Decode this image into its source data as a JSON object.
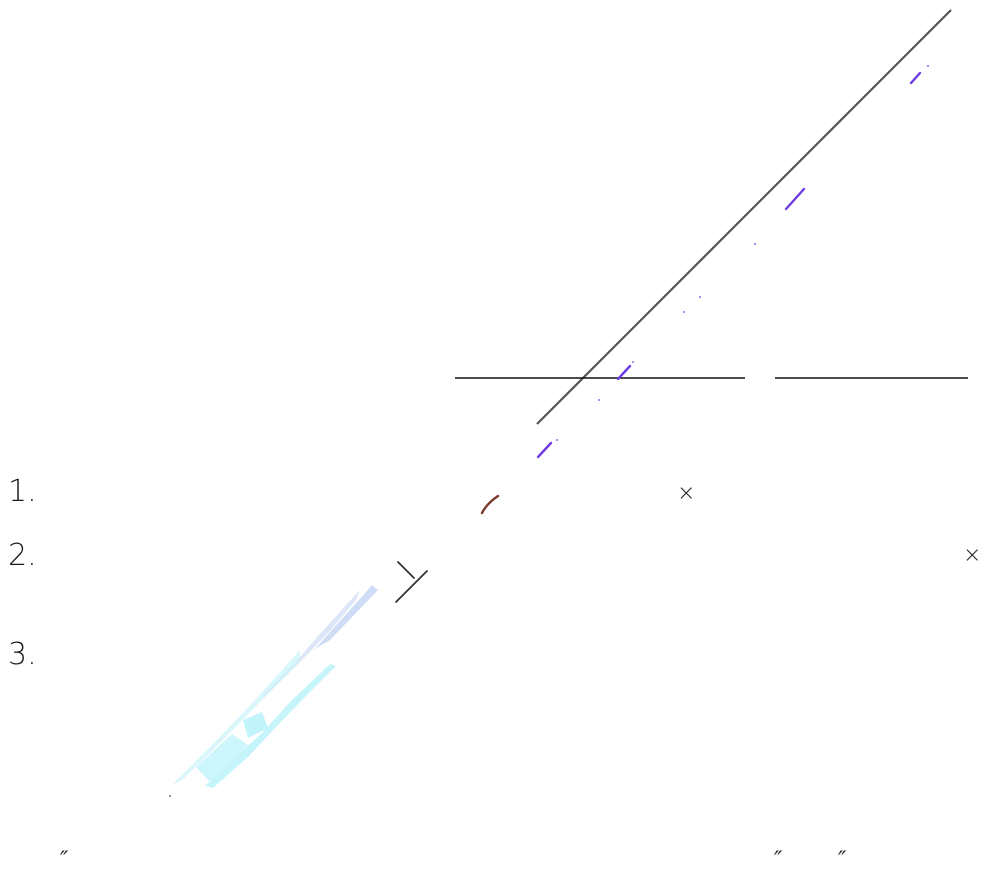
{
  "list": {
    "items": [
      "1.",
      "2.",
      "3."
    ]
  },
  "marks": {
    "times_symbol": "×",
    "quote_symbol": "″"
  },
  "colors": {
    "main_line": "#555555",
    "rule": "#111111",
    "violet_dash": "#6b3be0",
    "brown_dash": "#7a3a2a",
    "pale_blue": "#c9d8f5",
    "pale_cyan": "#bff4fb"
  }
}
